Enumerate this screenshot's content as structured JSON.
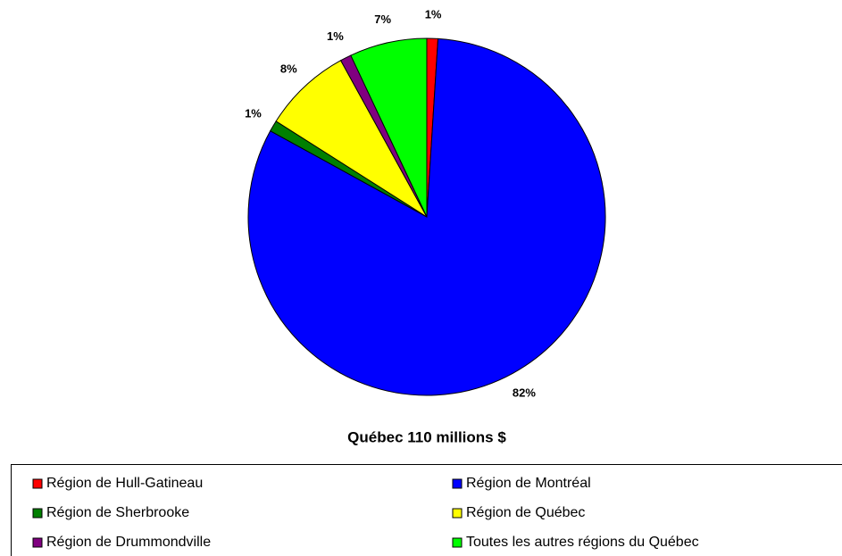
{
  "chart_data": {
    "type": "pie",
    "title": "Québec 110 millions $",
    "categories": [
      "Région de Hull-Gatineau",
      "Région de Montréal",
      "Région de Sherbrooke",
      "Région de Québec",
      "Région de Drummondville",
      "Toutes les autres régions du Québec"
    ],
    "values": [
      1,
      82,
      1,
      8,
      1,
      7
    ],
    "value_labels": [
      "1%",
      "82%",
      "1%",
      "8%",
      "1%",
      "7%"
    ],
    "colors": [
      "#ff0000",
      "#0000ff",
      "#008000",
      "#ffff00",
      "#800080",
      "#00ff00"
    ],
    "legend": "bottom"
  }
}
